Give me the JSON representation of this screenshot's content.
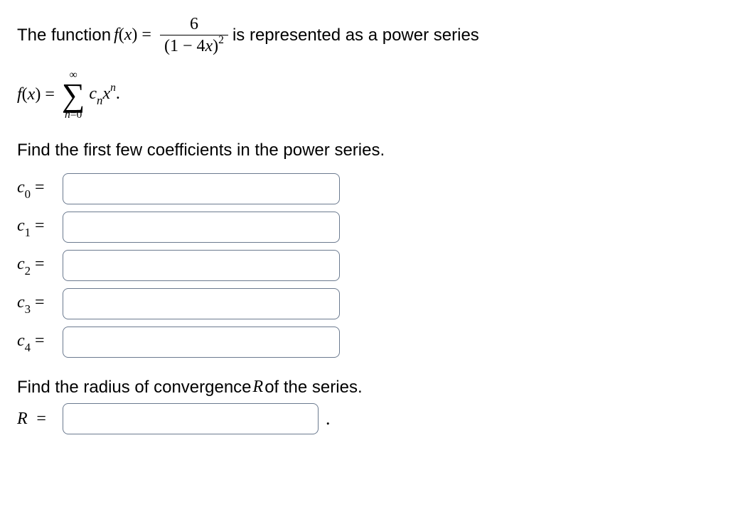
{
  "intro": {
    "prefix": "The function ",
    "f": "f",
    "lpar": "(",
    "x": "x",
    "rpar": ")",
    "eq": "=",
    "numerator": "6",
    "den_left": "(1 − 4",
    "den_x": "x",
    "den_right": ")",
    "den_exp": "2",
    "suffix": " is represented as a power series"
  },
  "series": {
    "f": "f",
    "lpar": "(",
    "x": "x",
    "rpar": ")",
    "eq": "=",
    "sum_top": "∞",
    "sum_bottom_var": "n",
    "sum_bottom_eq": "=0",
    "c": "c",
    "c_sub": "n",
    "x_sup": "n",
    "period": "."
  },
  "find_coeffs": "Find the first few coefficients in the power series.",
  "coefficients": [
    {
      "var": "c",
      "sub": "0",
      "value": ""
    },
    {
      "var": "c",
      "sub": "1",
      "value": ""
    },
    {
      "var": "c",
      "sub": "2",
      "value": ""
    },
    {
      "var": "c",
      "sub": "3",
      "value": ""
    },
    {
      "var": "c",
      "sub": "4",
      "value": ""
    }
  ],
  "find_radius_prefix": "Find the radius of convergence ",
  "R": "R",
  "find_radius_suffix": " of the series.",
  "radius": {
    "var": "R",
    "value": ""
  },
  "eq_sign": "=",
  "dot": "."
}
